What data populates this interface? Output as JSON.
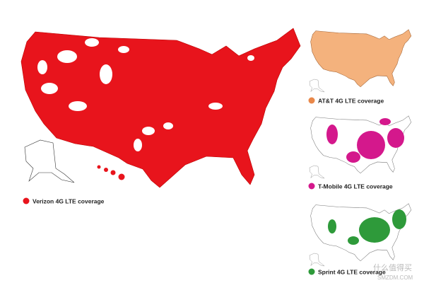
{
  "maps": [
    {
      "label": "Verizon 4G LTE coverage"
    },
    {
      "label": "AT&T 4G LTE coverage"
    },
    {
      "label": "T-Mobile 4G LTE coverage"
    },
    {
      "label": "Sprint 4G LTE coverage"
    }
  ],
  "watermark": {
    "text": "什么值得买",
    "site": "SMZDM.COM"
  }
}
